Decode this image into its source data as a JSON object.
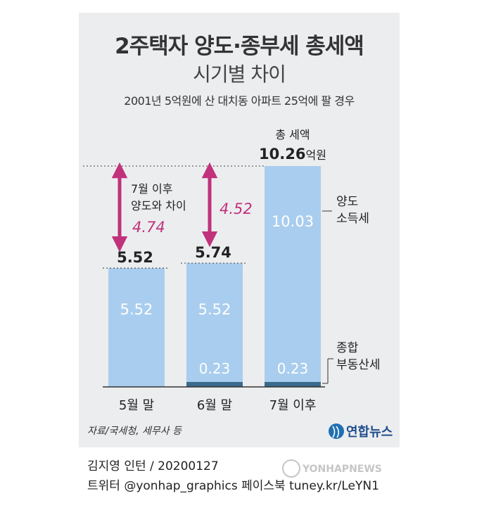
{
  "title": "2주택자 양도·종부세 총세액",
  "subtitle": "시기별 차이",
  "note": "2001년 5억원에 산 대치동 아파트 25억에 팔 경우",
  "colors": {
    "capital_gains": "#a9cdee",
    "property_tax": "#3a6a8c",
    "diff": "#c0327c",
    "bg": "#ecedef"
  },
  "chart_data": {
    "type": "bar",
    "stacked": true,
    "categories": [
      "5월 말",
      "6월 말",
      "7월 이후"
    ],
    "series": [
      {
        "name": "양도 소득세",
        "values": [
          5.52,
          5.52,
          10.03
        ]
      },
      {
        "name": "종합 부동산세",
        "values": [
          0,
          0.23,
          0.23
        ]
      }
    ],
    "totals": [
      "5.52",
      "5.74",
      "10.26"
    ],
    "total_label": "총 세액",
    "total_unit": "억원",
    "seg_labels": {
      "capital_gains": [
        "5.52",
        "5.52",
        "10.03"
      ],
      "property_tax": [
        "",
        "0.23",
        "0.23"
      ]
    },
    "diffs": {
      "label": "7월 이후 양도와 차이",
      "values": [
        "4.74",
        "4.52"
      ]
    },
    "legend": [
      "양도 소득세",
      "종합 부동산세"
    ]
  },
  "source": "자료/국세청, 세무사 등",
  "logo": "연합뉴스",
  "author": "김지영 인턴 / 20200127",
  "social": "트위터 @yonhap_graphics  페이스북 tuney.kr/LeYN1"
}
